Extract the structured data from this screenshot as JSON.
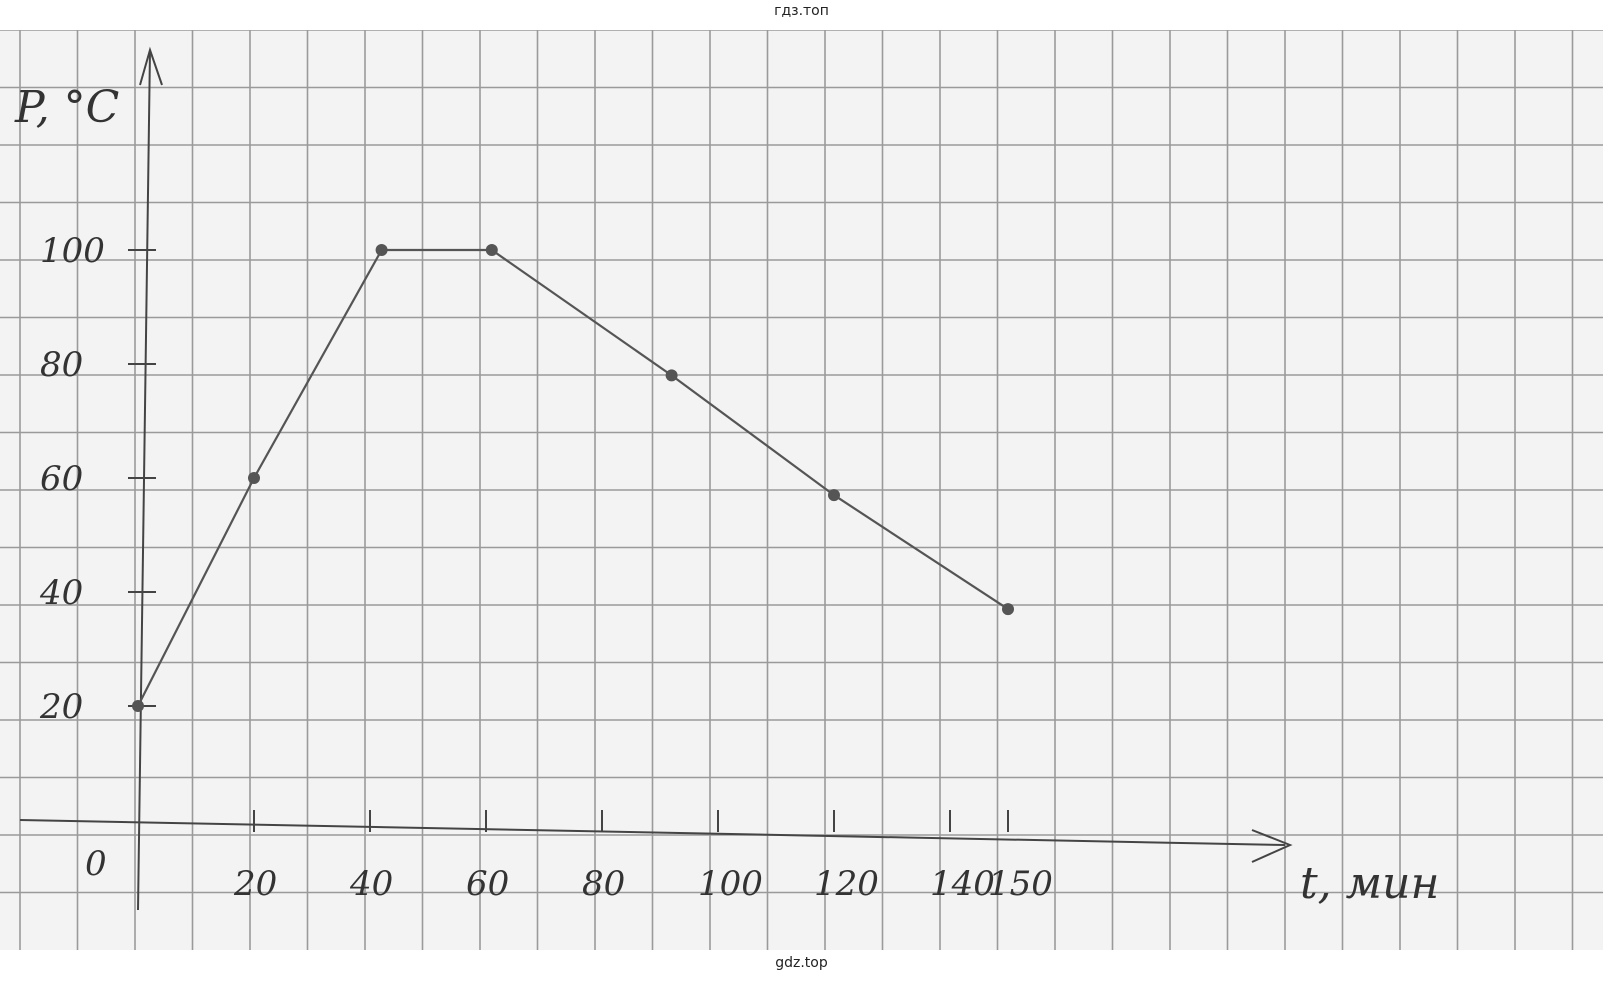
{
  "watermark": {
    "top": "гдз.топ",
    "bottom": "gdz.top"
  },
  "chart_data": {
    "type": "line",
    "ylabel": "P, °C",
    "xlabel": "t, мин",
    "origin_label": "0",
    "x_ticks": [
      20,
      40,
      60,
      80,
      100,
      120,
      140,
      150
    ],
    "x_tick_labels": [
      "20",
      "40",
      "60",
      "80",
      "100",
      "120",
      "140",
      "150"
    ],
    "y_ticks": [
      20,
      40,
      60,
      80,
      100
    ],
    "y_tick_labels": [
      "20",
      "40",
      "60",
      "80",
      "100"
    ],
    "xlim": [
      0,
      150
    ],
    "ylim": [
      0,
      100
    ],
    "grid": true,
    "series": [
      {
        "points": [
          {
            "x": 0,
            "y": 20
          },
          {
            "x": 20,
            "y": 60
          },
          {
            "x": 42,
            "y": 100
          },
          {
            "x": 61,
            "y": 100
          },
          {
            "x": 92,
            "y": 78
          },
          {
            "x": 120,
            "y": 57
          },
          {
            "x": 150,
            "y": 37
          }
        ]
      }
    ],
    "colors": {
      "line": "#555555",
      "grid": "#9a9a9a",
      "axis": "#444444",
      "paper": "#f3f3f3"
    }
  }
}
